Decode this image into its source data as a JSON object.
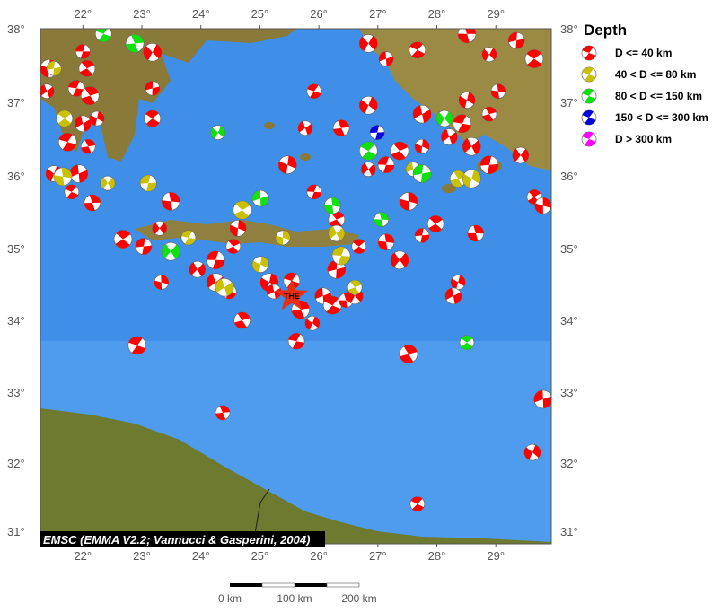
{
  "map": {
    "extent": {
      "lon": [
        21.28,
        29.95
      ],
      "lat": [
        30.8,
        38.0
      ]
    },
    "lon_ticks": [
      "22°",
      "23°",
      "24°",
      "25°",
      "26°",
      "27°",
      "28°",
      "29°"
    ],
    "lat_ticks": [
      "38°",
      "37°",
      "36°",
      "35°",
      "34°",
      "33°",
      "32°",
      "31°"
    ],
    "credit": "EMSC (EMMA V2.2; Vannucci & Gasperini, 2004)",
    "scale_labels": [
      "0 km",
      "100 km",
      "200 km"
    ],
    "colors": {
      "sea": "#3f8fe8",
      "land": "#8a7a3a",
      "shallow": "#6fb0f0"
    },
    "marker": {
      "label": "THE",
      "lon": 25.54,
      "lat": 34.34,
      "color": "#e83010"
    }
  },
  "legend": {
    "title": "Depth",
    "items": [
      {
        "label": "D <= 40 km",
        "color": "#ff0000"
      },
      {
        "label": "40 < D <= 80 km",
        "color": "#c8c000"
      },
      {
        "label": "80 < D <= 150 km",
        "color": "#10e010"
      },
      {
        "label": "150 < D <= 300 km",
        "color": "#0000e0"
      },
      {
        "label": "D > 300 km",
        "color": "#ff00ff"
      }
    ]
  },
  "events": [
    [
      22.0,
      37.69,
      0
    ],
    [
      22.07,
      37.46,
      0
    ],
    [
      21.43,
      37.46,
      0
    ],
    [
      21.39,
      37.15,
      0
    ],
    [
      21.89,
      37.19,
      0
    ],
    [
      22.12,
      37.09,
      0
    ],
    [
      22.24,
      36.78,
      0
    ],
    [
      22.0,
      36.71,
      0
    ],
    [
      21.74,
      36.46,
      0
    ],
    [
      22.09,
      36.4,
      0
    ],
    [
      21.51,
      36.03,
      0
    ],
    [
      21.93,
      36.03,
      0
    ],
    [
      21.81,
      35.78,
      0
    ],
    [
      22.16,
      35.63,
      0
    ],
    [
      23.18,
      37.68,
      0
    ],
    [
      23.18,
      37.19,
      0
    ],
    [
      23.18,
      36.78,
      0
    ],
    [
      23.49,
      35.65,
      0
    ],
    [
      23.3,
      35.28,
      0
    ],
    [
      23.03,
      35.03,
      0
    ],
    [
      22.68,
      35.13,
      0
    ],
    [
      23.33,
      34.53,
      0
    ],
    [
      23.94,
      34.71,
      0
    ],
    [
      24.25,
      34.84,
      0
    ],
    [
      24.55,
      35.03,
      0
    ],
    [
      24.63,
      35.28,
      0
    ],
    [
      24.25,
      34.53,
      0
    ],
    [
      24.48,
      34.4,
      0
    ],
    [
      24.7,
      34.0,
      0
    ],
    [
      25.16,
      34.53,
      0
    ],
    [
      25.24,
      34.4,
      0
    ],
    [
      25.54,
      34.55,
      0
    ],
    [
      25.69,
      34.15,
      0
    ],
    [
      25.89,
      33.96,
      0
    ],
    [
      26.07,
      34.34,
      0
    ],
    [
      26.23,
      34.21,
      0
    ],
    [
      26.46,
      34.28,
      0
    ],
    [
      26.61,
      34.34,
      0
    ],
    [
      26.3,
      34.71,
      0
    ],
    [
      26.68,
      35.03,
      0
    ],
    [
      27.14,
      35.09,
      0
    ],
    [
      27.37,
      34.84,
      0
    ],
    [
      27.75,
      35.18,
      0
    ],
    [
      27.98,
      35.34,
      0
    ],
    [
      27.52,
      35.65,
      0
    ],
    [
      26.84,
      36.09,
      0
    ],
    [
      27.14,
      36.15,
      0
    ],
    [
      27.37,
      36.34,
      0
    ],
    [
      27.75,
      36.4,
      0
    ],
    [
      28.21,
      36.53,
      0
    ],
    [
      28.43,
      36.71,
      0
    ],
    [
      28.89,
      36.84,
      0
    ],
    [
      28.51,
      37.03,
      0
    ],
    [
      27.75,
      36.84,
      0
    ],
    [
      25.92,
      37.15,
      0
    ],
    [
      26.38,
      36.65,
      0
    ],
    [
      26.84,
      36.96,
      0
    ],
    [
      27.14,
      37.59,
      0
    ],
    [
      27.67,
      37.71,
      0
    ],
    [
      28.51,
      37.93,
      0
    ],
    [
      28.89,
      37.65,
      0
    ],
    [
      29.35,
      37.84,
      0
    ],
    [
      29.65,
      37.59,
      0
    ],
    [
      29.04,
      37.15,
      0
    ],
    [
      29.42,
      36.28,
      0
    ],
    [
      28.89,
      36.15,
      0
    ],
    [
      29.65,
      35.71,
      0
    ],
    [
      29.8,
      35.59,
      0
    ],
    [
      28.59,
      36.4,
      0
    ],
    [
      25.92,
      35.78,
      0
    ],
    [
      26.3,
      35.4,
      0
    ],
    [
      25.47,
      36.15,
      0
    ],
    [
      25.77,
      36.65,
      0
    ],
    [
      25.62,
      33.71,
      0
    ],
    [
      27.52,
      33.53,
      0
    ],
    [
      28.36,
      34.53,
      0
    ],
    [
      28.28,
      34.34,
      0
    ],
    [
      22.92,
      33.65,
      0
    ],
    [
      24.37,
      32.71,
      0
    ],
    [
      29.62,
      32.15,
      0
    ],
    [
      29.8,
      32.9,
      0
    ],
    [
      27.67,
      31.4,
      0
    ],
    [
      28.66,
      35.21,
      0
    ],
    [
      26.84,
      37.8,
      0
    ],
    [
      21.51,
      37.46,
      1
    ],
    [
      21.69,
      36.78,
      1
    ],
    [
      21.66,
      35.99,
      1
    ],
    [
      22.42,
      35.9,
      1
    ],
    [
      23.11,
      35.9,
      1
    ],
    [
      24.7,
      35.53,
      1
    ],
    [
      25.39,
      35.15,
      1
    ],
    [
      26.3,
      35.21,
      1
    ],
    [
      26.38,
      34.9,
      1
    ],
    [
      26.61,
      34.46,
      1
    ],
    [
      25.01,
      34.78,
      1
    ],
    [
      24.4,
      34.46,
      1
    ],
    [
      23.79,
      35.15,
      1
    ],
    [
      28.36,
      35.96,
      1
    ],
    [
      28.59,
      35.96,
      1
    ],
    [
      27.6,
      36.09,
      1
    ],
    [
      22.35,
      37.93,
      2
    ],
    [
      22.88,
      37.8,
      2
    ],
    [
      24.29,
      36.59,
      2
    ],
    [
      25.01,
      35.69,
      2
    ],
    [
      26.84,
      36.34,
      2
    ],
    [
      27.06,
      35.4,
      2
    ],
    [
      28.13,
      36.78,
      2
    ],
    [
      27.75,
      36.03,
      2
    ],
    [
      28.51,
      33.69,
      2
    ],
    [
      26.23,
      35.59,
      2
    ],
    [
      23.49,
      34.96,
      2
    ],
    [
      26.99,
      36.59,
      3
    ]
  ]
}
